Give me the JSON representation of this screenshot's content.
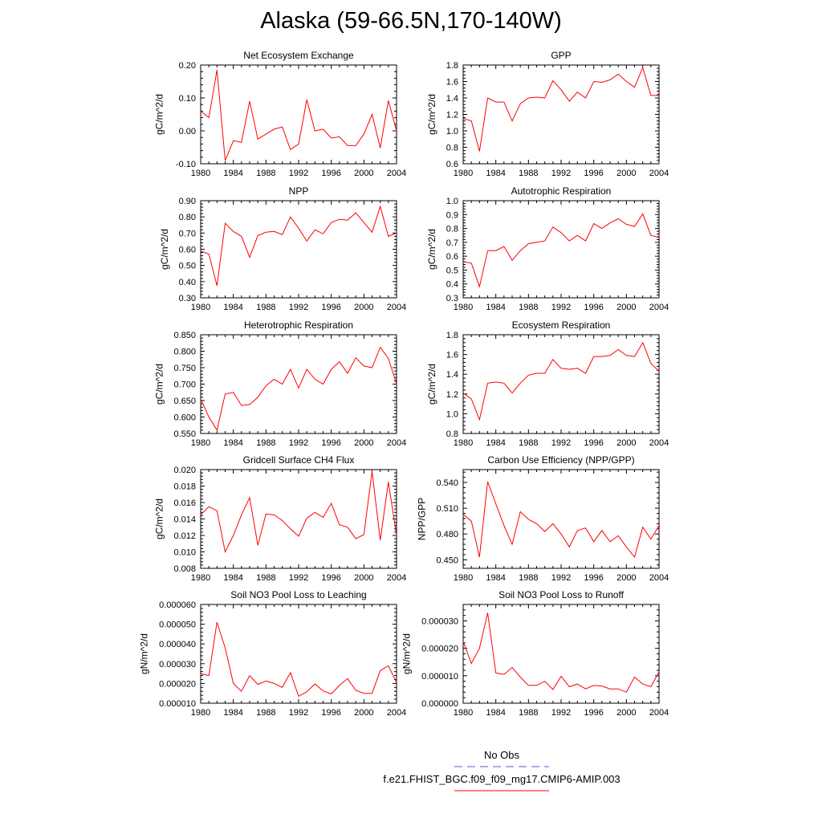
{
  "page": {
    "title": "Alaska (59-66.5N,170-140W)"
  },
  "legend": {
    "items": [
      {
        "label": "No Obs",
        "color": "#5555dd",
        "dash": "dashed"
      },
      {
        "label": "f.e21.FHIST_BGC.f09_f09_mg17.CMIP6-AMIP.003",
        "color": "#ff0000",
        "dash": "solid"
      }
    ]
  },
  "chart_data": [
    {
      "type": "line",
      "title": "Net Ecosystem Exchange",
      "ylabel": "gC/m^2/d",
      "xlabel": "",
      "xlim": [
        1980,
        2004
      ],
      "ylim": [
        -0.1,
        0.2
      ],
      "xticks": [
        "1980",
        "1984",
        "1988",
        "1992",
        "1996",
        "2000",
        "2004"
      ],
      "yticks": [
        "-0.10",
        "0.00",
        "0.10",
        "0.20"
      ],
      "series": [
        {
          "color": "#ff0000",
          "x": [
            1980,
            1981,
            1982,
            1983,
            1984,
            1985,
            1986,
            1987,
            1988,
            1989,
            1990,
            1991,
            1992,
            1993,
            1994,
            1995,
            1996,
            1997,
            1998,
            1999,
            2000,
            2001,
            2002,
            2003,
            2004
          ],
          "y": [
            0.06,
            0.04,
            0.185,
            -0.09,
            -0.03,
            -0.035,
            0.09,
            -0.025,
            -0.01,
            0.005,
            0.012,
            -0.057,
            -0.04,
            0.095,
            0.0,
            0.005,
            -0.022,
            -0.018,
            -0.045,
            -0.045,
            -0.01,
            0.05,
            -0.052,
            0.092,
            0.0
          ]
        }
      ]
    },
    {
      "type": "line",
      "title": "GPP",
      "ylabel": "gC/m^2/d",
      "xlabel": "",
      "xlim": [
        1980,
        2004
      ],
      "ylim": [
        0.6,
        1.8
      ],
      "xticks": [
        "1980",
        "1984",
        "1988",
        "1992",
        "1996",
        "2000",
        "2004"
      ],
      "yticks": [
        "0.6",
        "0.8",
        "1.0",
        "1.2",
        "1.4",
        "1.6",
        "1.8"
      ],
      "series": [
        {
          "color": "#ff0000",
          "x": [
            1980,
            1981,
            1982,
            1983,
            1984,
            1985,
            1986,
            1987,
            1988,
            1989,
            1990,
            1991,
            1992,
            1993,
            1994,
            1995,
            1996,
            1997,
            1998,
            1999,
            2000,
            2001,
            2002,
            2003,
            2004
          ],
          "y": [
            1.15,
            1.12,
            0.75,
            1.4,
            1.35,
            1.35,
            1.12,
            1.33,
            1.4,
            1.41,
            1.4,
            1.61,
            1.5,
            1.36,
            1.47,
            1.4,
            1.6,
            1.59,
            1.62,
            1.69,
            1.6,
            1.53,
            1.77,
            1.43,
            1.43
          ]
        }
      ]
    },
    {
      "type": "line",
      "title": "NPP",
      "ylabel": "gC/m^2/d",
      "xlabel": "",
      "xlim": [
        1980,
        2004
      ],
      "ylim": [
        0.3,
        0.9
      ],
      "xticks": [
        "1980",
        "1984",
        "1988",
        "1992",
        "1996",
        "2000",
        "2004"
      ],
      "yticks": [
        "0.30",
        "0.40",
        "0.50",
        "0.60",
        "0.70",
        "0.80",
        "0.90"
      ],
      "series": [
        {
          "color": "#ff0000",
          "x": [
            1980,
            1981,
            1982,
            1983,
            1984,
            1985,
            1986,
            1987,
            1988,
            1989,
            1990,
            1991,
            1992,
            1993,
            1994,
            1995,
            1996,
            1997,
            1998,
            1999,
            2000,
            2001,
            2002,
            2003,
            2004
          ],
          "y": [
            0.59,
            0.57,
            0.375,
            0.76,
            0.71,
            0.68,
            0.55,
            0.685,
            0.705,
            0.71,
            0.69,
            0.8,
            0.73,
            0.65,
            0.72,
            0.695,
            0.765,
            0.785,
            0.78,
            0.825,
            0.765,
            0.705,
            0.865,
            0.68,
            0.7
          ]
        }
      ]
    },
    {
      "type": "line",
      "title": "Autotrophic Respiration",
      "ylabel": "gC/m^2/d",
      "xlabel": "",
      "xlim": [
        1980,
        2004
      ],
      "ylim": [
        0.3,
        1.0
      ],
      "xticks": [
        "1980",
        "1984",
        "1988",
        "1992",
        "1996",
        "2000",
        "2004"
      ],
      "yticks": [
        "0.3",
        "0.4",
        "0.5",
        "0.6",
        "0.7",
        "0.8",
        "0.9",
        "1.0"
      ],
      "series": [
        {
          "color": "#ff0000",
          "x": [
            1980,
            1981,
            1982,
            1983,
            1984,
            1985,
            1986,
            1987,
            1988,
            1989,
            1990,
            1991,
            1992,
            1993,
            1994,
            1995,
            1996,
            1997,
            1998,
            1999,
            2000,
            2001,
            2002,
            2003,
            2004
          ],
          "y": [
            0.56,
            0.55,
            0.38,
            0.64,
            0.64,
            0.67,
            0.57,
            0.64,
            0.69,
            0.7,
            0.71,
            0.81,
            0.77,
            0.71,
            0.75,
            0.71,
            0.835,
            0.8,
            0.84,
            0.87,
            0.83,
            0.815,
            0.905,
            0.75,
            0.735
          ]
        }
      ]
    },
    {
      "type": "line",
      "title": "Heterotrophic Respiration",
      "ylabel": "gC/m^2/d",
      "xlabel": "",
      "xlim": [
        1980,
        2004
      ],
      "ylim": [
        0.55,
        0.85
      ],
      "xticks": [
        "1980",
        "1984",
        "1988",
        "1992",
        "1996",
        "2000",
        "2004"
      ],
      "yticks": [
        "0.550",
        "0.600",
        "0.650",
        "0.700",
        "0.750",
        "0.800",
        "0.850"
      ],
      "series": [
        {
          "color": "#ff0000",
          "x": [
            1980,
            1981,
            1982,
            1983,
            1984,
            1985,
            1986,
            1987,
            1988,
            1989,
            1990,
            1991,
            1992,
            1993,
            1994,
            1995,
            1996,
            1997,
            1998,
            1999,
            2000,
            2001,
            2002,
            2003,
            2004
          ],
          "y": [
            0.655,
            0.6,
            0.56,
            0.67,
            0.675,
            0.635,
            0.638,
            0.66,
            0.695,
            0.715,
            0.7,
            0.745,
            0.688,
            0.745,
            0.715,
            0.7,
            0.745,
            0.768,
            0.733,
            0.78,
            0.755,
            0.75,
            0.812,
            0.778,
            0.7
          ]
        }
      ]
    },
    {
      "type": "line",
      "title": "Ecosystem Respiration",
      "ylabel": "gC/m^2/d",
      "xlabel": "",
      "xlim": [
        1980,
        2004
      ],
      "ylim": [
        0.8,
        1.8
      ],
      "xticks": [
        "1980",
        "1984",
        "1988",
        "1992",
        "1996",
        "2000",
        "2004"
      ],
      "yticks": [
        "0.8",
        "1.0",
        "1.2",
        "1.4",
        "1.6",
        "1.8"
      ],
      "series": [
        {
          "color": "#ff0000",
          "x": [
            1980,
            1981,
            1982,
            1983,
            1984,
            1985,
            1986,
            1987,
            1988,
            1989,
            1990,
            1991,
            1992,
            1993,
            1994,
            1995,
            1996,
            1997,
            1998,
            1999,
            2000,
            2001,
            2002,
            2003,
            2004
          ],
          "y": [
            1.21,
            1.15,
            0.94,
            1.31,
            1.32,
            1.31,
            1.21,
            1.31,
            1.39,
            1.41,
            1.41,
            1.55,
            1.46,
            1.45,
            1.46,
            1.41,
            1.58,
            1.58,
            1.59,
            1.65,
            1.59,
            1.58,
            1.72,
            1.51,
            1.43
          ]
        }
      ]
    },
    {
      "type": "line",
      "title": "Gridcell Surface CH4 Flux",
      "ylabel": "gC/m^2/d",
      "xlabel": "",
      "xlim": [
        1980,
        2004
      ],
      "ylim": [
        0.008,
        0.02
      ],
      "xticks": [
        "1980",
        "1984",
        "1988",
        "1992",
        "1996",
        "2000",
        "2004"
      ],
      "yticks": [
        "0.008",
        "0.010",
        "0.012",
        "0.014",
        "0.016",
        "0.018",
        "0.020"
      ],
      "series": [
        {
          "color": "#ff0000",
          "x": [
            1980,
            1981,
            1982,
            1983,
            1984,
            1985,
            1986,
            1987,
            1988,
            1989,
            1990,
            1991,
            1992,
            1993,
            1994,
            1995,
            1996,
            1997,
            1998,
            1999,
            2000,
            2001,
            2002,
            2003,
            2004
          ],
          "y": [
            0.0145,
            0.0155,
            0.015,
            0.01,
            0.012,
            0.0145,
            0.0166,
            0.0108,
            0.0146,
            0.0145,
            0.0138,
            0.0128,
            0.0119,
            0.0141,
            0.0148,
            0.0142,
            0.0159,
            0.0133,
            0.013,
            0.0116,
            0.0121,
            0.0198,
            0.0114,
            0.0185,
            0.012
          ]
        }
      ]
    },
    {
      "type": "line",
      "title": "Carbon Use Efficiency (NPP/GPP)",
      "ylabel": "NPP/GPP",
      "xlabel": "",
      "xlim": [
        1980,
        2004
      ],
      "ylim": [
        0.44,
        0.555
      ],
      "xticks": [
        "1980",
        "1984",
        "1988",
        "1992",
        "1996",
        "2000",
        "2004"
      ],
      "yticks": [
        "0.450",
        "0.480",
        "0.510",
        "0.540"
      ],
      "series": [
        {
          "color": "#ff0000",
          "x": [
            1980,
            1981,
            1982,
            1983,
            1984,
            1985,
            1986,
            1987,
            1988,
            1989,
            1990,
            1991,
            1992,
            1993,
            1994,
            1995,
            1996,
            1997,
            1998,
            1999,
            2000,
            2001,
            2002,
            2003,
            2004
          ],
          "y": [
            0.503,
            0.495,
            0.453,
            0.541,
            0.515,
            0.49,
            0.468,
            0.506,
            0.497,
            0.492,
            0.483,
            0.492,
            0.48,
            0.465,
            0.484,
            0.487,
            0.471,
            0.484,
            0.471,
            0.478,
            0.465,
            0.453,
            0.488,
            0.474,
            0.49
          ]
        }
      ]
    },
    {
      "type": "line",
      "title": "Soil NO3 Pool Loss to Leaching",
      "ylabel": "gN/m^2/d",
      "xlabel": "",
      "xlim": [
        1980,
        2004
      ],
      "ylim": [
        1e-05,
        6e-05
      ],
      "xticks": [
        "1980",
        "1984",
        "1988",
        "1992",
        "1996",
        "2000",
        "2004"
      ],
      "yticks": [
        "0.000010",
        "0.000020",
        "0.000030",
        "0.000040",
        "0.000050",
        "0.000060"
      ],
      "series": [
        {
          "color": "#ff0000",
          "x": [
            1980,
            1981,
            1982,
            1983,
            1984,
            1985,
            1986,
            1987,
            1988,
            1989,
            1990,
            1991,
            1992,
            1993,
            1994,
            1995,
            1996,
            1997,
            1998,
            1999,
            2000,
            2001,
            2002,
            2003,
            2004
          ],
          "y": [
            2.5e-05,
            2.4e-05,
            5.1e-05,
            3.8e-05,
            2e-05,
            1.6e-05,
            2.4e-05,
            1.95e-05,
            2.12e-05,
            2e-05,
            1.8e-05,
            2.55e-05,
            1.35e-05,
            1.58e-05,
            1.97e-05,
            1.62e-05,
            1.47e-05,
            1.9e-05,
            2.25e-05,
            1.65e-05,
            1.5e-05,
            1.5e-05,
            2.65e-05,
            2.9e-05,
            2.05e-05
          ]
        }
      ]
    },
    {
      "type": "line",
      "title": "Soil NO3 Pool Loss to Runoff",
      "ylabel": "gN/m^2/d",
      "xlabel": "",
      "xlim": [
        1980,
        2004
      ],
      "ylim": [
        0.0,
        3.6e-05
      ],
      "xticks": [
        "1980",
        "1984",
        "1988",
        "1992",
        "1996",
        "2000",
        "2004"
      ],
      "yticks": [
        "0.000000",
        "0.000010",
        "0.000020",
        "0.000030"
      ],
      "series": [
        {
          "color": "#ff0000",
          "x": [
            1980,
            1981,
            1982,
            1983,
            1984,
            1985,
            1986,
            1987,
            1988,
            1989,
            1990,
            1991,
            1992,
            1993,
            1994,
            1995,
            1996,
            1997,
            1998,
            1999,
            2000,
            2001,
            2002,
            2003,
            2004
          ],
          "y": [
            2.25e-05,
            1.45e-05,
            2e-05,
            3.3e-05,
            1.1e-05,
            1.05e-05,
            1.3e-05,
            9.5e-06,
            6.5e-06,
            6.5e-06,
            8e-06,
            5e-06,
            9.8e-06,
            6e-06,
            7e-06,
            5.2e-06,
            6.5e-06,
            6.2e-06,
            5.2e-06,
            5.2e-06,
            4e-06,
            9.5e-06,
            7e-06,
            6e-06,
            1.15e-05
          ]
        }
      ]
    }
  ]
}
